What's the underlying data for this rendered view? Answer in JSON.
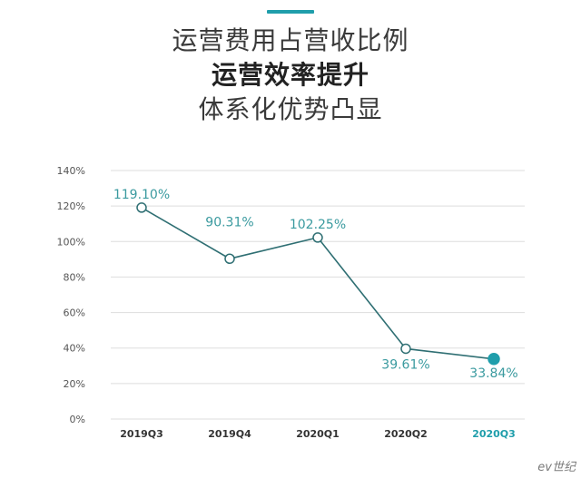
{
  "title_lines": [
    "运营费用占营收比例",
    "运营效率提升",
    "体系化优势凸显"
  ],
  "watermark": "ev世纪",
  "colors": {
    "accent": "#1f9eab",
    "line": "#2f6f73",
    "label": "#3a9a9f",
    "grid": "#dddddd",
    "axis_text": "#555555"
  },
  "chart_data": {
    "type": "line",
    "categories": [
      "2019Q3",
      "2019Q4",
      "2020Q1",
      "2020Q2",
      "2020Q3"
    ],
    "series": [
      {
        "values": [
          119.1,
          90.31,
          102.25,
          39.61,
          33.84
        ],
        "labels": [
          "119.10%",
          "90.31%",
          "102.25%",
          "39.61%",
          "33.84%"
        ]
      }
    ],
    "yticks": [
      "0%",
      "20%",
      "40%",
      "60%",
      "80%",
      "100%",
      "120%",
      "140%"
    ],
    "ylim": [
      0,
      140
    ],
    "grid": true,
    "highlight_index": 4
  }
}
